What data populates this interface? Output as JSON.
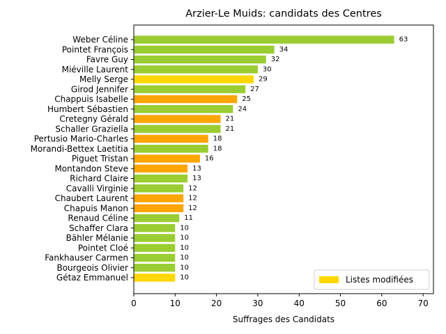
{
  "chart_data": {
    "type": "bar",
    "orientation": "horizontal",
    "title": "Arzier-Le Muids: candidats des Centres",
    "xlabel": "Suffrages des Candidats",
    "ylabel": "",
    "xlim": [
      0,
      72.5
    ],
    "xticks": [
      0,
      10,
      20,
      30,
      40,
      50,
      60,
      70
    ],
    "grid": false,
    "legend": {
      "placement": "lower right",
      "entries": [
        {
          "label": "Listes modifiées",
          "color": "#FFD700"
        }
      ]
    },
    "colors": {
      "green": "#9ACD32",
      "orange": "#FFA500",
      "gold": "#FFD700"
    },
    "categories": [
      "Weber Céline",
      "Pointet François",
      "Favre Guy",
      "Miéville Laurent",
      "Melly Serge",
      "Girod Jennifer",
      "Chappuis Isabelle",
      "Humbert Sébastien",
      "Cretegny Gérald",
      "Schaller Graziella",
      "Pertusio Mario-Charles",
      "Morandi-Bettex Laetitia",
      "Piguet Tristan",
      "Montandon Steve",
      "Richard Claire",
      "Cavalli Virginie",
      "Chaubert Laurent",
      "Chapuis Manon",
      "Renaud Céline",
      "Schaffer Clara",
      "Bähler Mélanie",
      "Pointet Cloé",
      "Fankhauser Carmen",
      "Bourgeois Olivier",
      "Gétaz Emmanuel"
    ],
    "values": [
      63,
      34,
      32,
      30,
      29,
      27,
      25,
      24,
      21,
      21,
      18,
      18,
      16,
      13,
      13,
      12,
      12,
      12,
      11,
      10,
      10,
      10,
      10,
      10,
      10
    ],
    "bar_colors": [
      "#9ACD32",
      "#9ACD32",
      "#9ACD32",
      "#9ACD32",
      "#FFD700",
      "#9ACD32",
      "#FFA500",
      "#9ACD32",
      "#FFA500",
      "#9ACD32",
      "#FFA500",
      "#9ACD32",
      "#FFA500",
      "#FFA500",
      "#9ACD32",
      "#9ACD32",
      "#FFA500",
      "#FFA500",
      "#9ACD32",
      "#9ACD32",
      "#9ACD32",
      "#9ACD32",
      "#9ACD32",
      "#9ACD32",
      "#FFD700"
    ]
  }
}
